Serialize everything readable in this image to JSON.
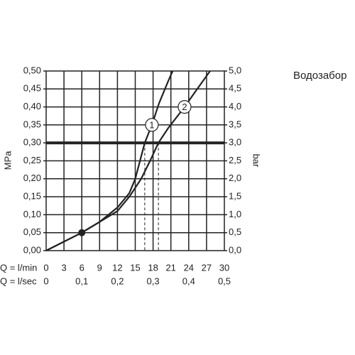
{
  "chart_data": {
    "type": "line",
    "title": "Водозабор",
    "ylabel": "MPa",
    "y2label": "bar",
    "xlabel": "Q = l/min",
    "x2label": "Q = l/sec",
    "xlim": [
      0,
      30
    ],
    "xticks": [
      0,
      3,
      6,
      9,
      12,
      15,
      18,
      21,
      24,
      27,
      30
    ],
    "x2lim": [
      0,
      0.5
    ],
    "x2ticks": [
      0,
      {
        "value": 0.1,
        "label": "0,1"
      },
      {
        "value": 0.2,
        "label": "0,2"
      },
      {
        "value": 0.3,
        "label": "0,3"
      },
      {
        "value": 0.4,
        "label": "0,4"
      },
      {
        "value": 0.5,
        "label": "0,5"
      }
    ],
    "ylim": [
      0,
      0.5
    ],
    "yticks": [
      {
        "value": 0,
        "label": "0,00"
      },
      {
        "value": 0.05,
        "label": "0,05"
      },
      {
        "value": 0.1,
        "label": "0,10"
      },
      {
        "value": 0.15,
        "label": "0,15"
      },
      {
        "value": 0.2,
        "label": "0,20"
      },
      {
        "value": 0.25,
        "label": "0,25"
      },
      {
        "value": 0.3,
        "label": "0,30"
      },
      {
        "value": 0.35,
        "label": "0,35"
      },
      {
        "value": 0.4,
        "label": "0,40"
      },
      {
        "value": 0.45,
        "label": "0,45"
      },
      {
        "value": 0.5,
        "label": "0,50"
      }
    ],
    "y2lim": [
      0,
      5
    ],
    "y2ticks": [
      {
        "value": 0,
        "label": "0,0"
      },
      {
        "value": 0.5,
        "label": "0,5"
      },
      {
        "value": 1,
        "label": "1,0"
      },
      {
        "value": 1.5,
        "label": "1,5"
      },
      {
        "value": 2,
        "label": "2,0"
      },
      {
        "value": 2.5,
        "label": "2,5"
      },
      {
        "value": 3,
        "label": "3,0"
      },
      {
        "value": 3.5,
        "label": "3,5"
      },
      {
        "value": 4,
        "label": "4,0"
      },
      {
        "value": 4.5,
        "label": "4,5"
      },
      {
        "value": 5,
        "label": "5,0"
      }
    ],
    "grid": true,
    "series": [
      {
        "name": "1",
        "color": "#222222",
        "x": [
          0,
          6,
          9,
          12,
          14,
          15,
          16.6,
          17.8,
          19,
          20.5,
          21.3
        ],
        "values": [
          0,
          0.05,
          0.08,
          0.12,
          0.16,
          0.2,
          0.3,
          0.35,
          0.41,
          0.47,
          0.5
        ]
      },
      {
        "name": "2",
        "color": "#222222",
        "x": [
          0,
          6,
          9,
          12,
          14,
          16,
          17.5,
          18.9,
          20.5,
          23.3,
          25,
          27.6
        ],
        "values": [
          0,
          0.05,
          0.08,
          0.11,
          0.15,
          0.2,
          0.25,
          0.3,
          0.34,
          0.4,
          0.44,
          0.5
        ]
      }
    ],
    "hline": 0.3,
    "vlines": [
      16.6,
      18.9
    ],
    "marker": {
      "x": 6,
      "y": 0.05
    }
  }
}
